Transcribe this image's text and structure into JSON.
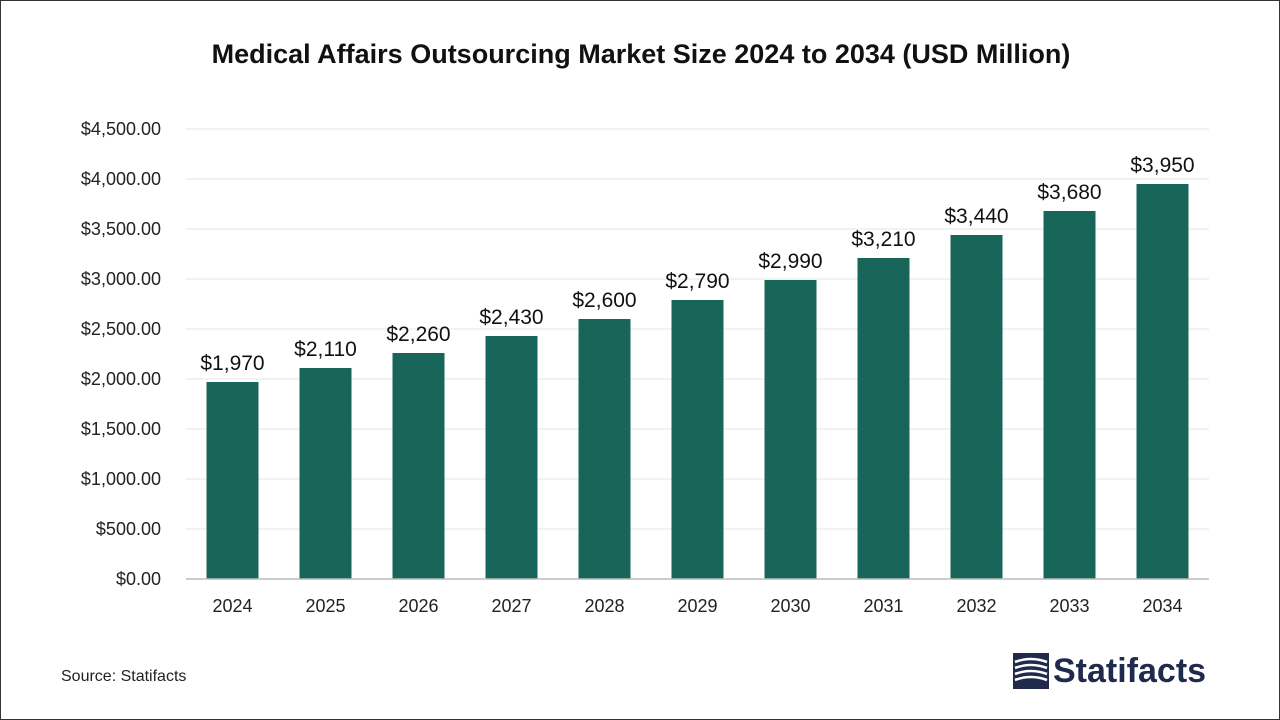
{
  "source": "Source: Statifacts",
  "brand": {
    "name": "Statifacts",
    "logo_icon": "statifacts-logo-icon",
    "color": "#1f2a4d"
  },
  "colors": {
    "bar": "#18665a",
    "grid": "#e6e6e6",
    "axis": "#bbbbbb"
  },
  "chart_data": {
    "type": "bar",
    "title": "Medical Affairs Outsourcing Market Size 2024 to 2034 (USD Million)",
    "xlabel": "",
    "ylabel": "",
    "categories": [
      "2024",
      "2025",
      "2026",
      "2027",
      "2028",
      "2029",
      "2030",
      "2031",
      "2032",
      "2033",
      "2034"
    ],
    "values": [
      1970,
      2110,
      2260,
      2430,
      2600,
      2790,
      2990,
      3210,
      3440,
      3680,
      3950
    ],
    "value_labels": [
      "$1,970",
      "$2,110",
      "$2,260",
      "$2,430",
      "$2,600",
      "$2,790",
      "$2,990",
      "$3,210",
      "$3,440",
      "$3,680",
      "$3,950"
    ],
    "ylim": [
      0,
      4500
    ],
    "yticks": [
      0,
      500,
      1000,
      1500,
      2000,
      2500,
      3000,
      3500,
      4000,
      4500
    ],
    "ytick_labels": [
      "$0.00",
      "$500.00",
      "$1,000.00",
      "$1,500.00",
      "$2,000.00",
      "$2,500.00",
      "$3,000.00",
      "$3,500.00",
      "$4,000.00",
      "$4,500.00"
    ],
    "grid": true,
    "legend": "none"
  }
}
